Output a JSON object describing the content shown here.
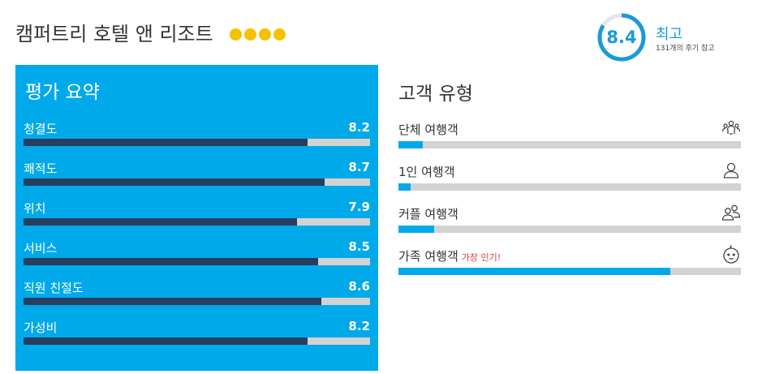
{
  "hotel": {
    "name": "캠퍼트리 호텔 앤 리조트",
    "star_rating": 4,
    "star_color": "#f6c100"
  },
  "score": {
    "value": "8.4",
    "fraction": 0.84,
    "word": "최고",
    "review_count_text": "131개의 후기 참고"
  },
  "summary": {
    "title": "평가 요약",
    "metrics": [
      {
        "label": "청결도",
        "value": "8.2",
        "score": 8.2
      },
      {
        "label": "쾌적도",
        "value": "8.7",
        "score": 8.7
      },
      {
        "label": "위치",
        "value": "7.9",
        "score": 7.9
      },
      {
        "label": "서비스",
        "value": "8.5",
        "score": 8.5
      },
      {
        "label": "직원 친절도",
        "value": "8.6",
        "score": 8.6
      },
      {
        "label": "가성비",
        "value": "8.2",
        "score": 8.2
      }
    ]
  },
  "traveler_types": {
    "title": "고객 유형",
    "items": [
      {
        "label": "단체 여행객",
        "badge": "",
        "icon": "group-icon",
        "share": 0.07
      },
      {
        "label": "1인 여행객",
        "badge": "",
        "icon": "solo-traveler-icon",
        "share": 0.035
      },
      {
        "label": "커플 여행객",
        "badge": "",
        "icon": "couple-icon",
        "share": 0.105
      },
      {
        "label": "가족 여행객",
        "badge": "가장 인기!",
        "icon": "family-icon",
        "share": 0.795
      }
    ]
  },
  "colors": {
    "accent": "#00a9e9",
    "score_ring": "#1a9ad8",
    "bar_dark": "#283e61",
    "bar_track": "#d3d3d3",
    "badge": "#e03b3b"
  }
}
